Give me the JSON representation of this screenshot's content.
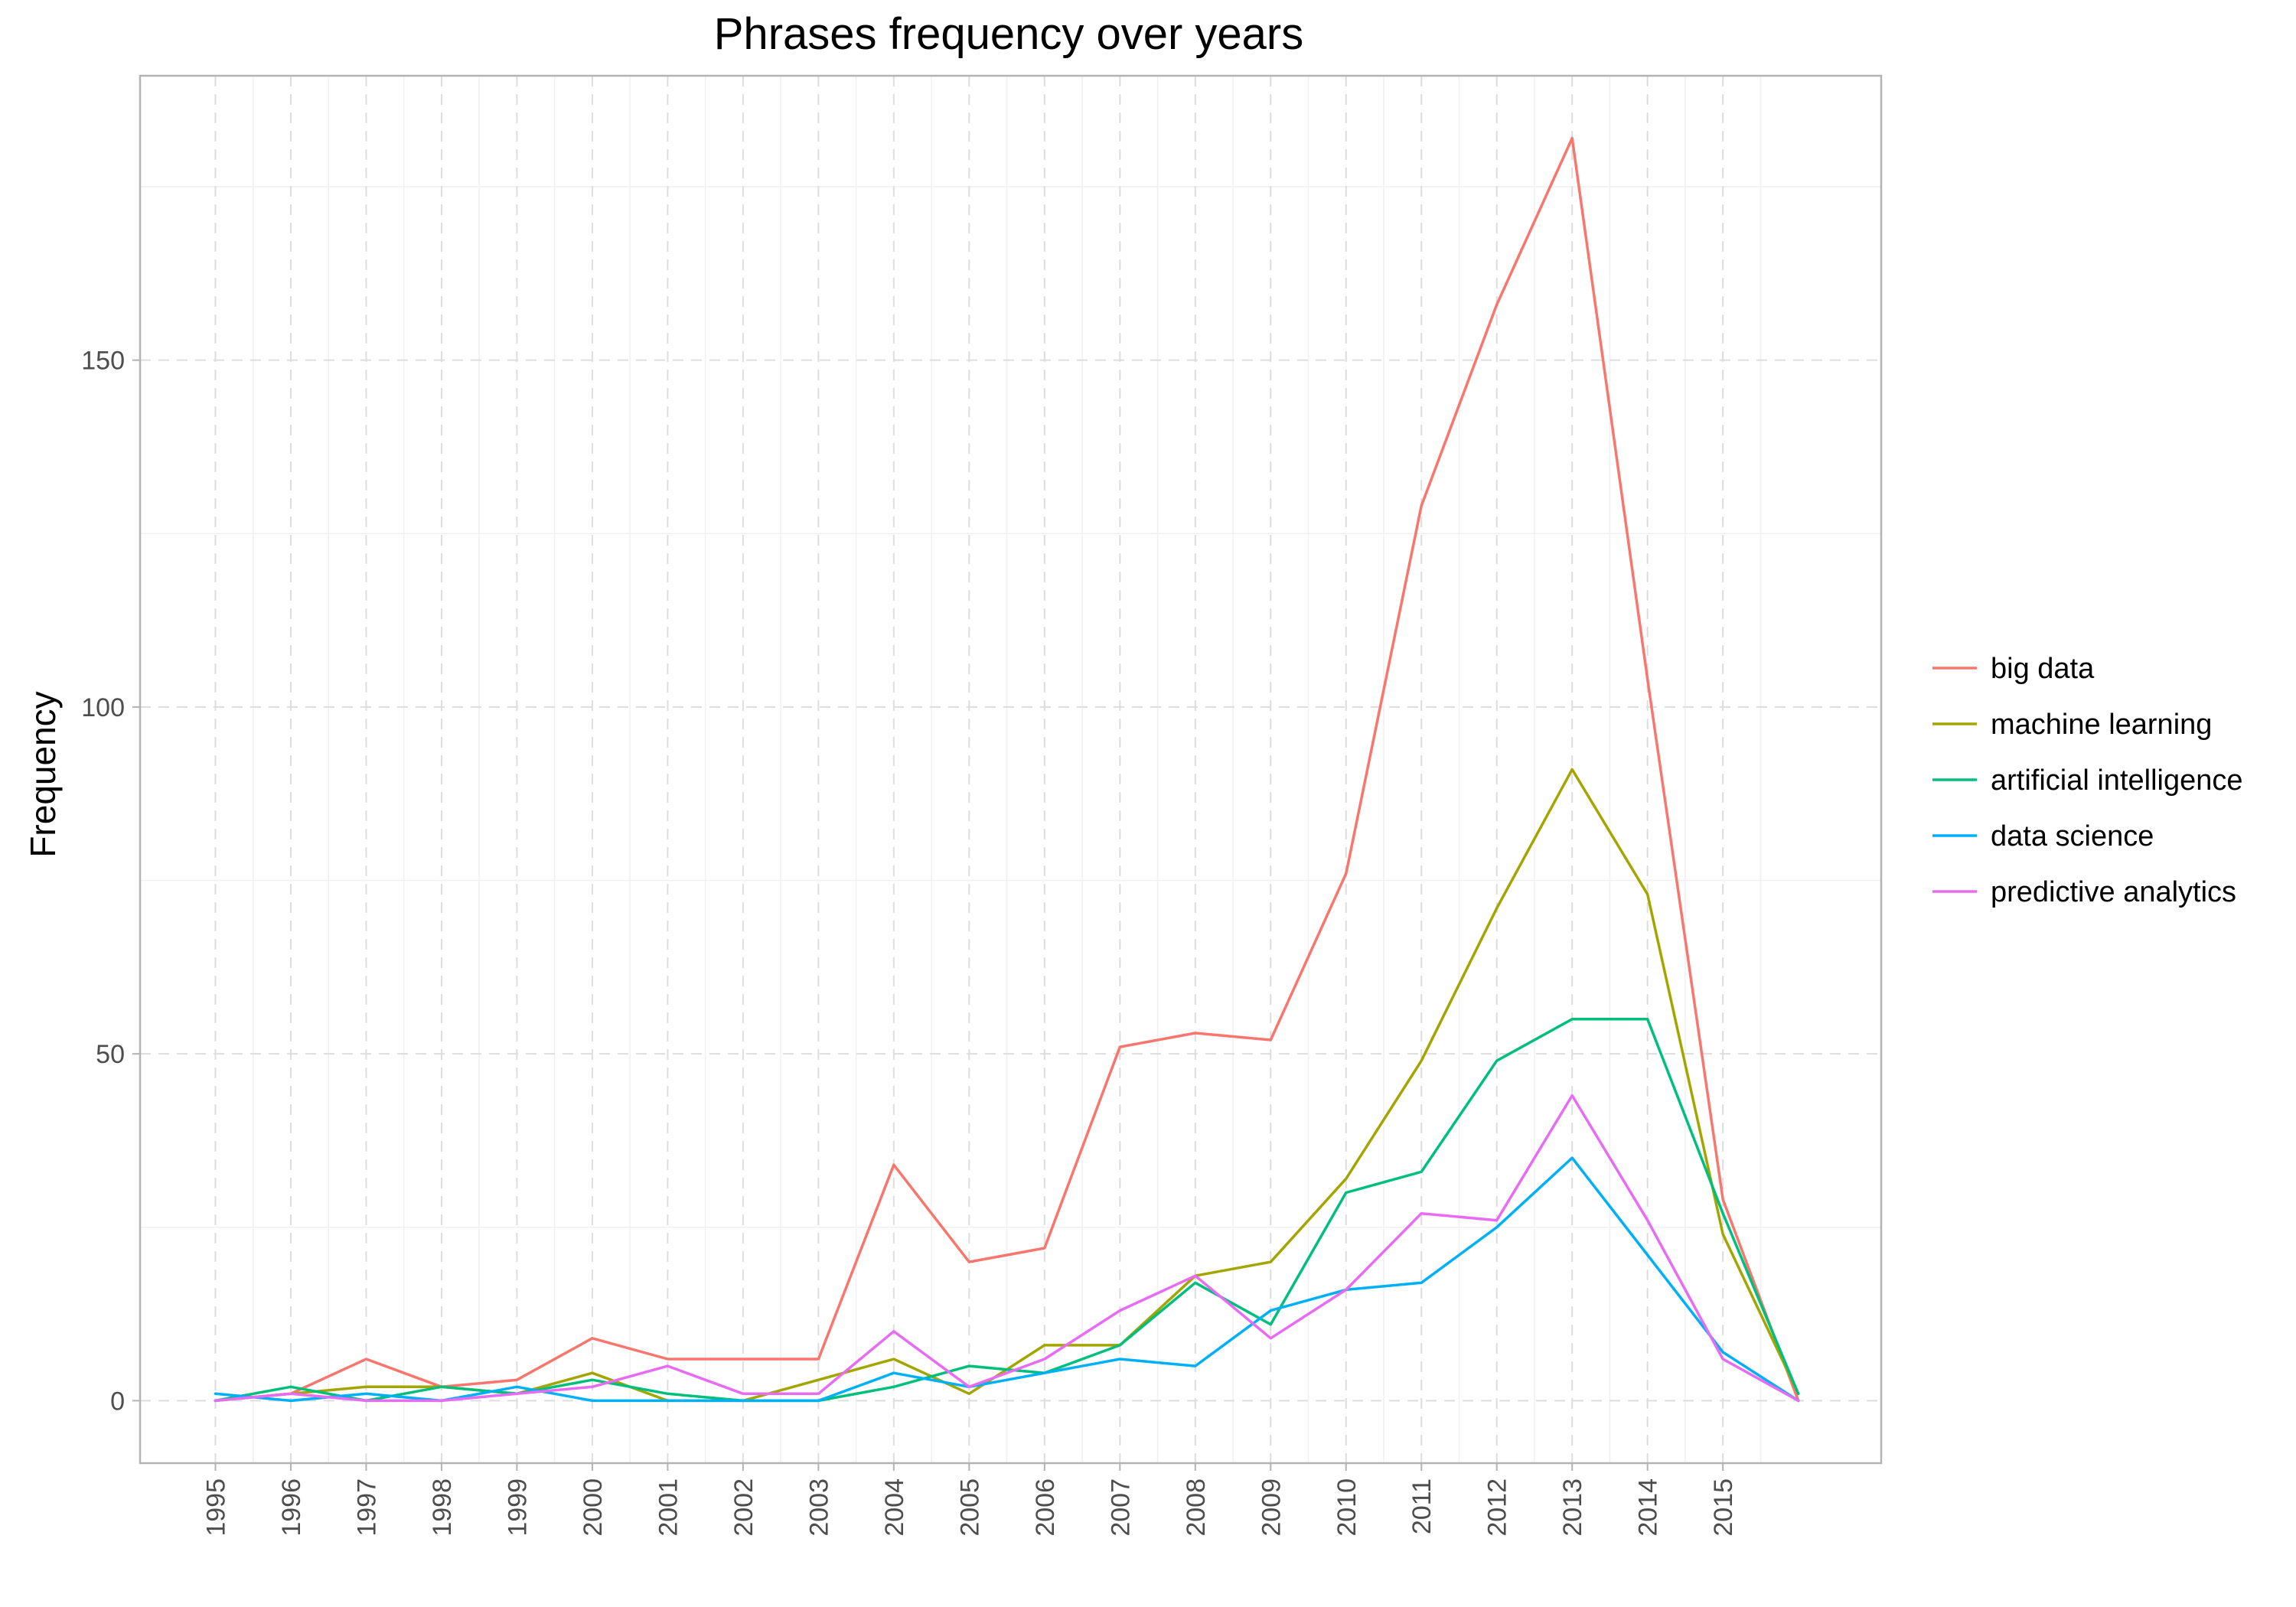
{
  "chart_data": {
    "type": "line",
    "title": "Phrases frequency over years",
    "xlabel": "",
    "ylabel": "Frequency",
    "x": [
      1995,
      1996,
      1997,
      1998,
      1999,
      2000,
      2001,
      2002,
      2003,
      2004,
      2005,
      2006,
      2007,
      2008,
      2009,
      2010,
      2011,
      2012,
      2013,
      2014,
      2015,
      2016
    ],
    "x_tick_labels": [
      "1995",
      "1996",
      "1997",
      "1998",
      "1999",
      "2000",
      "2001",
      "2002",
      "2003",
      "2004",
      "2005",
      "2006",
      "2007",
      "2008",
      "2009",
      "2010",
      "2011",
      "2012",
      "2013",
      "2014",
      "2015"
    ],
    "xlim": [
      1994,
      2017.1
    ],
    "ylim": [
      -9,
      191
    ],
    "y_ticks": [
      0,
      50,
      100,
      150
    ],
    "y_tick_labels": [
      "0",
      "50",
      "100",
      "150"
    ],
    "grid": true,
    "legend_position": "right",
    "series": [
      {
        "name": "big data",
        "color": "#F8766D",
        "values": [
          0,
          1,
          6,
          2,
          3,
          9,
          6,
          6,
          6,
          34,
          20,
          22,
          51,
          53,
          52,
          76,
          129,
          158,
          182,
          104,
          29,
          0
        ]
      },
      {
        "name": "machine learning",
        "color": "#A3A500",
        "values": [
          0,
          1,
          2,
          2,
          1,
          4,
          0,
          0,
          3,
          6,
          1,
          8,
          8,
          18,
          20,
          32,
          49,
          71,
          91,
          73,
          24,
          1
        ]
      },
      {
        "name": "artificial intelligence",
        "color": "#00BF7D",
        "values": [
          0,
          2,
          0,
          2,
          1,
          3,
          1,
          0,
          0,
          2,
          5,
          4,
          8,
          17,
          11,
          30,
          33,
          49,
          55,
          55,
          27,
          1
        ]
      },
      {
        "name": "data science",
        "color": "#00B0F6",
        "values": [
          1,
          0,
          1,
          0,
          2,
          0,
          0,
          0,
          0,
          4,
          2,
          4,
          6,
          5,
          13,
          16,
          17,
          25,
          35,
          21,
          7,
          0
        ]
      },
      {
        "name": "predictive analytics",
        "color": "#E76BF3",
        "values": [
          0,
          1,
          0,
          0,
          1,
          2,
          5,
          1,
          1,
          10,
          2,
          6,
          13,
          18,
          9,
          16,
          27,
          26,
          44,
          26,
          6,
          0
        ]
      }
    ]
  }
}
